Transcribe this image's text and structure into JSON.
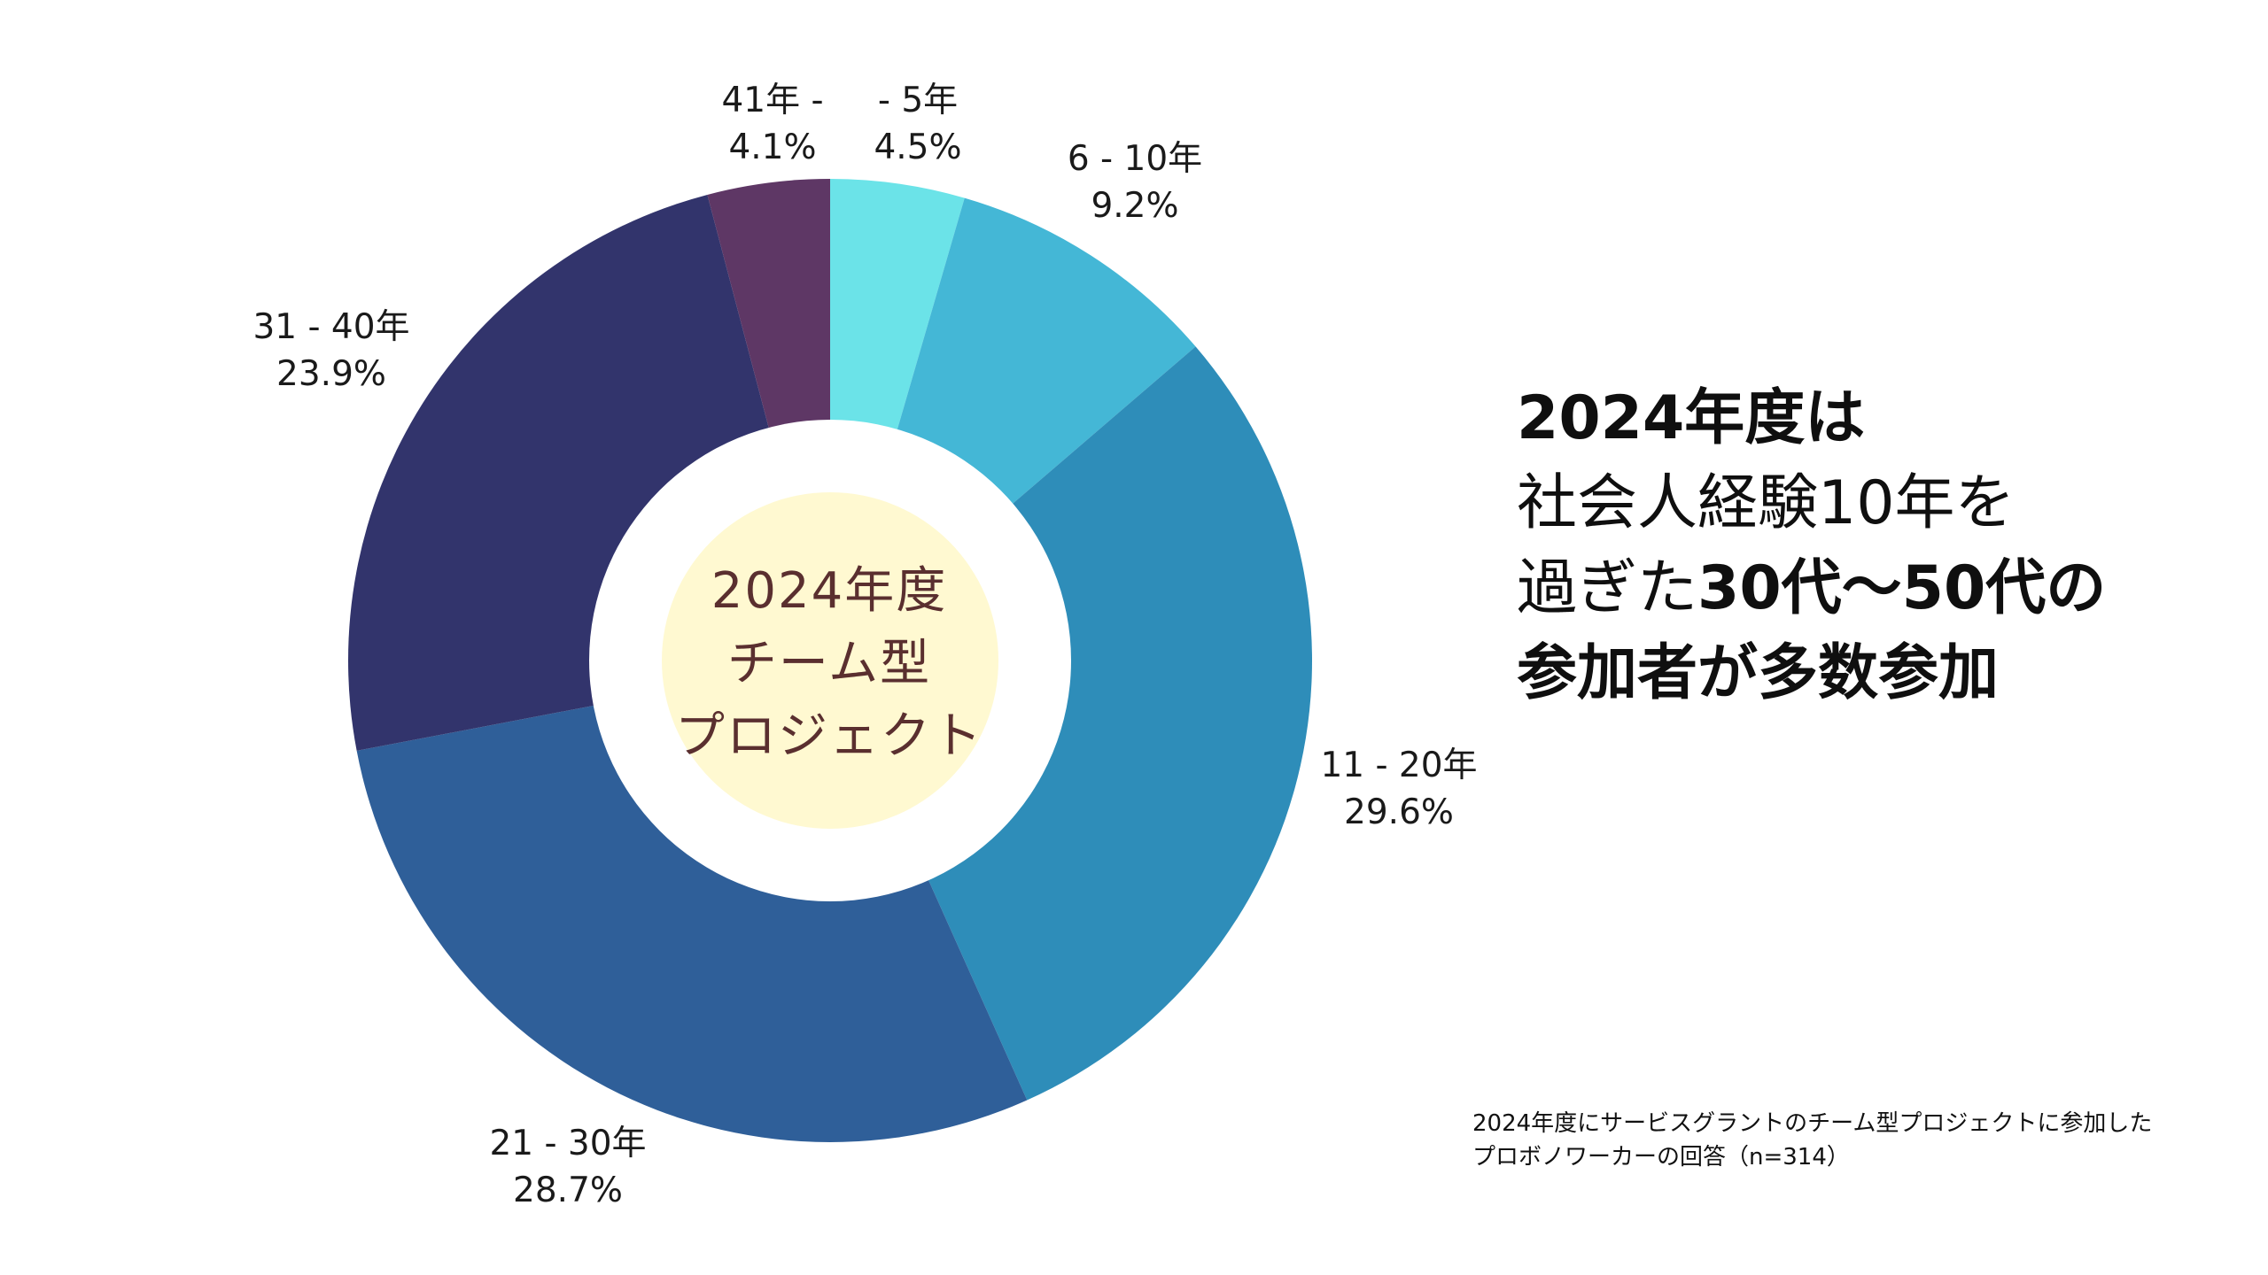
{
  "chart_data": {
    "type": "pie",
    "categories": [
      "- 5年",
      "6 - 10年",
      "11 - 20年",
      "21 - 30年",
      "31 - 40年",
      "41年 -"
    ],
    "values": [
      4.5,
      9.2,
      29.6,
      28.7,
      23.9,
      4.1
    ],
    "value_labels": [
      "4.5%",
      "9.2%",
      "29.6%",
      "28.7%",
      "23.9%",
      "4.1%"
    ],
    "colors": [
      "#6be3e8",
      "#44b7d6",
      "#2e8db9",
      "#2f5f99",
      "#32346c",
      "#5e3765"
    ],
    "center_text": [
      "2024年度",
      "チーム型",
      "プロジェクト"
    ],
    "center_fill": "#fff9d1",
    "center_text_color": "#5a2f2f"
  },
  "headline": {
    "line1": "2024年度は",
    "line2": "社会人経験10年を",
    "line3_regular": "過ぎた",
    "line3_bold": "30代〜50代の",
    "line4": "参加者が多数参加"
  },
  "note": {
    "line1": "2024年度にサービスグラントのチーム型プロジェクトに参加した",
    "line2": "プロボノワーカーの回答（n=314）"
  }
}
